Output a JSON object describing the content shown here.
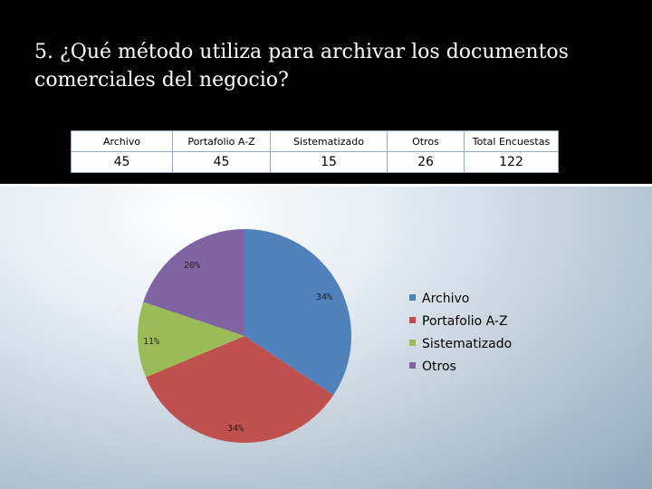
{
  "slide": {
    "title": "5. ¿Qué método utiliza para archivar los documentos comerciales del negocio?"
  },
  "table": {
    "headers": [
      "Archivo",
      "Portafolio A-Z",
      "Sistematizado",
      "Otros",
      "Total Encuestas"
    ],
    "values": [
      "45",
      "45",
      "15",
      "26",
      "122"
    ]
  },
  "chart_data": {
    "type": "pie",
    "categories": [
      "Archivo",
      "Portafolio A-Z",
      "Sistematizado",
      "Otros"
    ],
    "values": [
      45,
      45,
      15,
      26
    ],
    "labels": [
      "34%",
      "34%",
      "11%",
      "20%"
    ],
    "colors": [
      "#4F81BD",
      "#C0504D",
      "#9BBB59",
      "#8064A2"
    ],
    "legend": "right"
  }
}
